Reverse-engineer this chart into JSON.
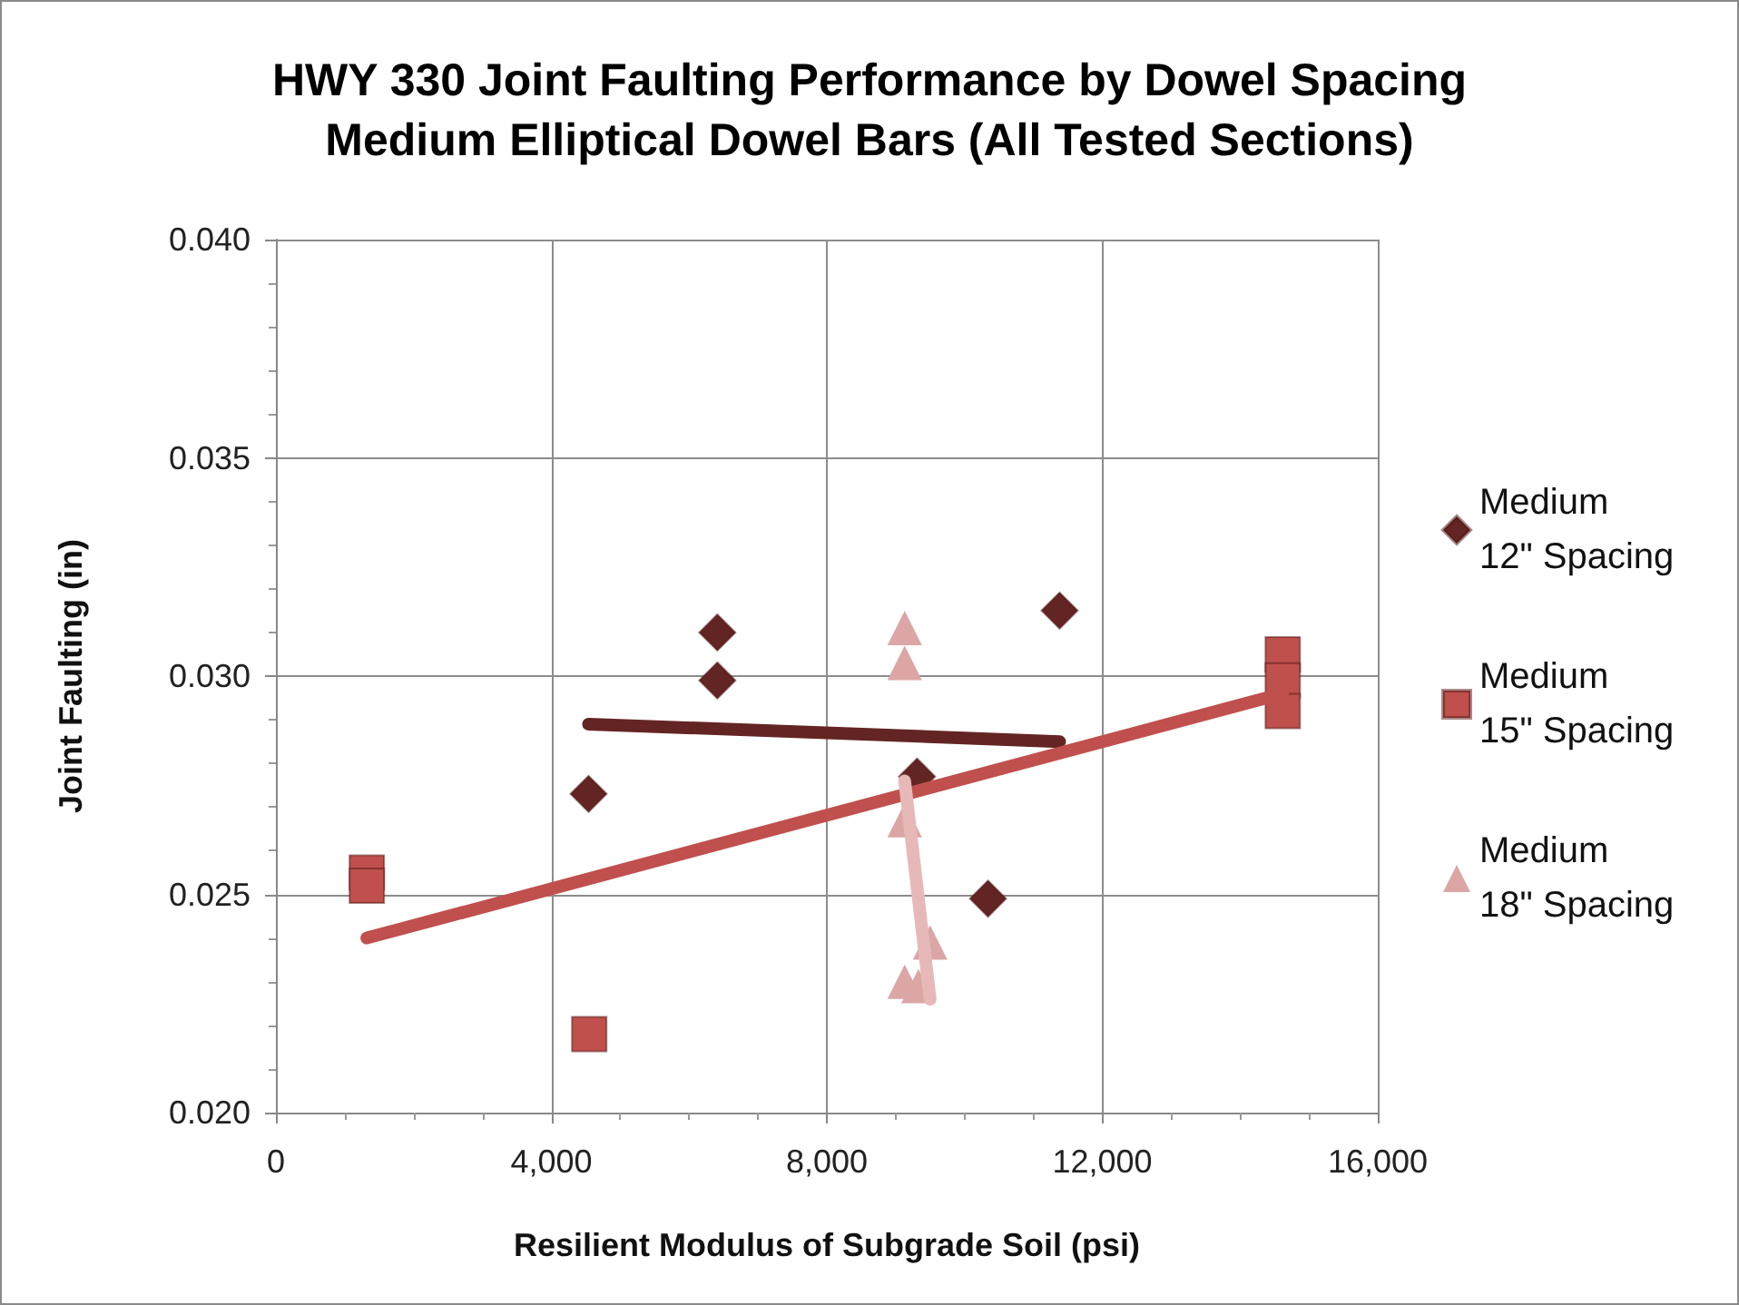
{
  "chart_data": {
    "type": "scatter",
    "title": "HWY 330 Joint Faulting Performance by Dowel Spacing",
    "subtitle": "Medium Elliptical Dowel Bars (All Tested Sections)",
    "xlabel": "Resilient Modulus of Subgrade Soil (psi)",
    "ylabel": "Joint Faulting (in)",
    "xlim": [
      0,
      16000
    ],
    "xticks": [
      {
        "value": 0,
        "label": "0"
      },
      {
        "value": 1000,
        "label": null
      },
      {
        "value": 2000,
        "label": null
      },
      {
        "value": 3000,
        "label": null
      },
      {
        "value": 4000,
        "label": "4,000"
      },
      {
        "value": 5000,
        "label": null
      },
      {
        "value": 6000,
        "label": null
      },
      {
        "value": 7000,
        "label": null
      },
      {
        "value": 8000,
        "label": "8,000"
      },
      {
        "value": 9000,
        "label": null
      },
      {
        "value": 10000,
        "label": null
      },
      {
        "value": 11000,
        "label": null
      },
      {
        "value": 12000,
        "label": "12,000"
      },
      {
        "value": 13000,
        "label": null
      },
      {
        "value": 14000,
        "label": null
      },
      {
        "value": 15000,
        "label": null
      },
      {
        "value": 16000,
        "label": "16,000"
      }
    ],
    "ylim": [
      0.02,
      0.04
    ],
    "yticks": [
      {
        "value": 0.02,
        "label": "0.020"
      },
      {
        "value": 0.021,
        "label": null
      },
      {
        "value": 0.022,
        "label": null
      },
      {
        "value": 0.023,
        "label": null
      },
      {
        "value": 0.024,
        "label": null
      },
      {
        "value": 0.025,
        "label": "0.025"
      },
      {
        "value": 0.026,
        "label": null
      },
      {
        "value": 0.027,
        "label": null
      },
      {
        "value": 0.028,
        "label": null
      },
      {
        "value": 0.029,
        "label": null
      },
      {
        "value": 0.03,
        "label": "0.030"
      },
      {
        "value": 0.031,
        "label": null
      },
      {
        "value": 0.032,
        "label": null
      },
      {
        "value": 0.033,
        "label": null
      },
      {
        "value": 0.034,
        "label": null
      },
      {
        "value": 0.035,
        "label": "0.035"
      },
      {
        "value": 0.036,
        "label": null
      },
      {
        "value": 0.037,
        "label": null
      },
      {
        "value": 0.038,
        "label": null
      },
      {
        "value": 0.039,
        "label": null
      },
      {
        "value": 0.04,
        "label": "0.040"
      }
    ],
    "grid": true,
    "legend": "right",
    "series": [
      {
        "name": "Medium 12\" Spacing",
        "color": "#632523",
        "marker": "diamond",
        "x": [
          4540,
          6410,
          6410,
          9310,
          10340,
          11380
        ],
        "values": [
          0.0273,
          0.031,
          0.0299,
          0.0277,
          0.0249,
          0.0315
        ]
      },
      {
        "name": "Medium 15\" Spacing",
        "color": "#c0504d",
        "marker": "square",
        "x": [
          1320,
          1320,
          4550,
          14620,
          14620,
          14620
        ],
        "values": [
          0.0255,
          0.0252,
          0.0218,
          0.0305,
          0.0299,
          0.0292
        ]
      },
      {
        "name": "Medium 18\" Spacing",
        "color": "#dba6a5",
        "marker": "triangle",
        "x": [
          9130,
          9130,
          9130,
          9500,
          9130,
          9330
        ],
        "values": [
          0.0311,
          0.0303,
          0.0267,
          0.0239,
          0.023,
          0.0229
        ]
      },
      {
        "type": "line",
        "color": "#632523",
        "marker": "none",
        "x": [
          4540,
          11380
        ],
        "values": [
          0.0289,
          0.0285
        ]
      },
      {
        "type": "line",
        "color": "#c0504d",
        "marker": "none",
        "x": [
          1320,
          14620
        ],
        "values": [
          0.024,
          0.0296
        ]
      },
      {
        "type": "line",
        "color": "#e6b9b8",
        "marker": "none",
        "x": [
          9130,
          9500
        ],
        "values": [
          0.0276,
          0.0226
        ]
      }
    ]
  }
}
